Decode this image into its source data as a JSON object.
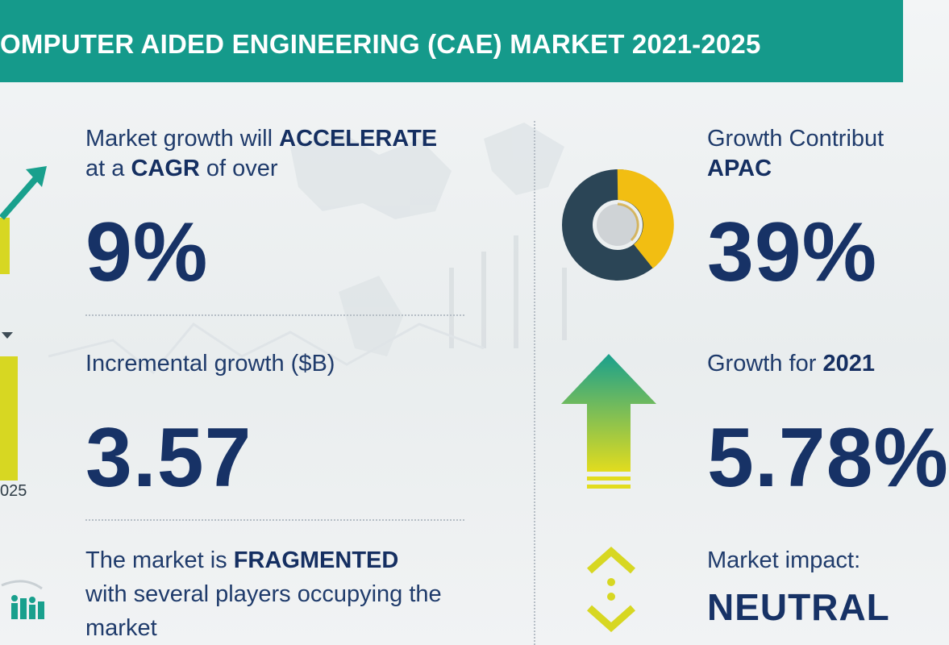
{
  "header": {
    "title": "OMPUTER AIDED ENGINEERING (CAE) MARKET 2021-2025"
  },
  "left_chart": {
    "year_label": "025"
  },
  "blocks": {
    "cagr": {
      "line1_pre": "Market growth will ",
      "line1_em": "ACCELERATE",
      "line2_pre": "at a ",
      "line2_em": "CAGR",
      "line2_post": " of over",
      "value": "9%"
    },
    "incremental": {
      "label": "Incremental growth ($B)",
      "value": "3.57"
    },
    "fragmented": {
      "line1_pre": "The market is ",
      "line1_em": "FRAGMENTED",
      "line2": "with several players occupying the",
      "line3": "market"
    },
    "apac": {
      "label": "Growth Contribut",
      "em": "APAC",
      "value": "39%"
    },
    "growth2021": {
      "label_pre": "Growth for ",
      "label_em": "2021",
      "value": "5.78%"
    },
    "impact": {
      "label": "Market impact:",
      "value": "NEUTRAL"
    }
  },
  "colors": {
    "header": "#159a8b",
    "navy": "#173266",
    "yellow": "#d7d722",
    "teal": "#19a08d",
    "donut_dark": "#2b4556",
    "donut_yellow": "#f2be12"
  },
  "icons": [
    "trend-arrow-icon",
    "bar-chart-icon",
    "donut-chart-icon",
    "up-arrow-icon",
    "neutral-impact-icon",
    "players-icon"
  ]
}
